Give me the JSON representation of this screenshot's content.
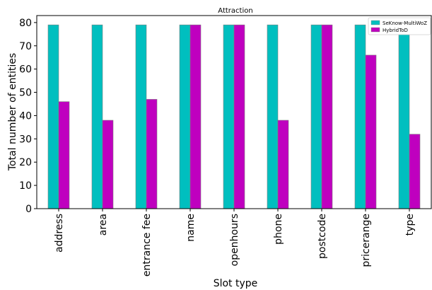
{
  "chart_data": {
    "type": "bar",
    "title": "Attraction",
    "xlabel": "Slot type",
    "ylabel": "Total number of entities",
    "categories": [
      "address",
      "area",
      "entrance fee",
      "name",
      "openhours",
      "phone",
      "postcode",
      "pricerange",
      "type"
    ],
    "series": [
      {
        "name": "SeKnow-MultiWoZ",
        "color": "#00bfbf",
        "values": [
          79,
          79,
          79,
          79,
          79,
          79,
          79,
          79,
          79
        ]
      },
      {
        "name": "HybridToD",
        "color": "#bf00bf",
        "values": [
          46,
          38,
          47,
          79,
          79,
          38,
          79,
          66,
          32
        ]
      }
    ],
    "ylim": [
      0,
      83
    ],
    "yticks": [
      0,
      10,
      20,
      30,
      40,
      50,
      60,
      70,
      80
    ],
    "grid": false,
    "legend_position": "top-right"
  }
}
